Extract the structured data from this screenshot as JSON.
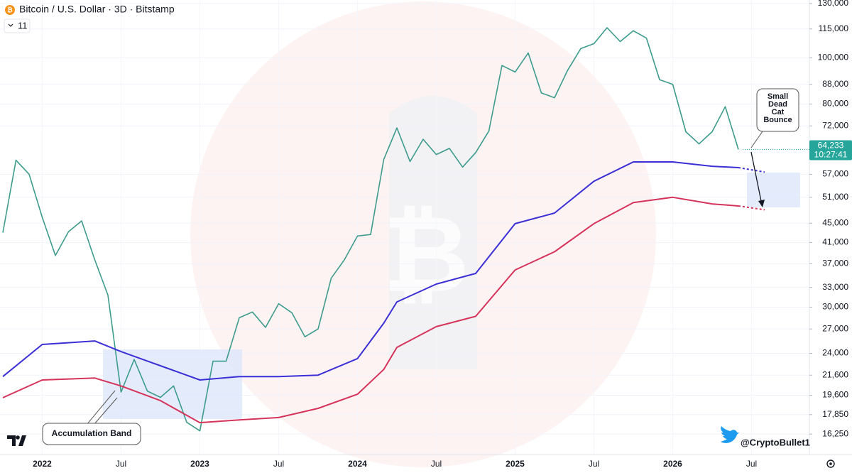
{
  "chart_data": {
    "type": "line",
    "title": "Bitcoin / U.S. Dollar · 3D · Bitstamp",
    "indicator_count": "11",
    "log_scale": true,
    "grid": true,
    "xlim": [
      "2021-10",
      "2026-11"
    ],
    "xticks": [
      {
        "value": "2022-01",
        "label": "2022"
      },
      {
        "value": "2022-07",
        "label": "Jul"
      },
      {
        "value": "2023-01",
        "label": "2023"
      },
      {
        "value": "2023-07",
        "label": "Jul"
      },
      {
        "value": "2024-01",
        "label": "2024"
      },
      {
        "value": "2024-07",
        "label": "Jul"
      },
      {
        "value": "2025-01",
        "label": "2025"
      },
      {
        "value": "2025-07",
        "label": "Jul"
      },
      {
        "value": "2026-01",
        "label": "2026"
      },
      {
        "value": "2026-07",
        "label": "Jul"
      }
    ],
    "ylim": [
      14720,
      132250
    ],
    "yticks": [
      {
        "value": 130000,
        "label": "130,000"
      },
      {
        "value": 115000,
        "label": "115,000"
      },
      {
        "value": 100000,
        "label": "100,000"
      },
      {
        "value": 88000,
        "label": "88,000"
      },
      {
        "value": 80000,
        "label": "80,000"
      },
      {
        "value": 72000,
        "label": "72,000"
      },
      {
        "value": 57000,
        "label": "57,000"
      },
      {
        "value": 51000,
        "label": "51,000"
      },
      {
        "value": 45000,
        "label": "45,000"
      },
      {
        "value": 41000,
        "label": "41,000"
      },
      {
        "value": 37000,
        "label": "37,000"
      },
      {
        "value": 33000,
        "label": "33,000"
      },
      {
        "value": 30000,
        "label": "30,000"
      },
      {
        "value": 27000,
        "label": "27,000"
      },
      {
        "value": 24000,
        "label": "24,000"
      },
      {
        "value": 21600,
        "label": "21,600"
      },
      {
        "value": 19600,
        "label": "19,600"
      },
      {
        "value": 17850,
        "label": "17,850"
      },
      {
        "value": 16250,
        "label": "16,250"
      }
    ],
    "last_price": {
      "value": 64233,
      "label": "64,233",
      "countdown": "10:27:41",
      "color": "#26a69a"
    },
    "series": [
      {
        "color": "#3d9b8c",
        "width": 1.6,
        "x": [
          "2021-10",
          "2021-11",
          "2021-12",
          "2022-01",
          "2022-02",
          "2022-03",
          "2022-04",
          "2022-05",
          "2022-06",
          "2022-07",
          "2022-08",
          "2022-09",
          "2022-10",
          "2022-11",
          "2022-12",
          "2023-01",
          "2023-02",
          "2023-03",
          "2023-04",
          "2023-05",
          "2023-06",
          "2023-07",
          "2023-08",
          "2023-09",
          "2023-10",
          "2023-11",
          "2023-12",
          "2024-01",
          "2024-02",
          "2024-03",
          "2024-04",
          "2024-05",
          "2024-06",
          "2024-07",
          "2024-08",
          "2024-09",
          "2024-10",
          "2024-11",
          "2024-12",
          "2025-01",
          "2025-02",
          "2025-03",
          "2025-04",
          "2025-05",
          "2025-06",
          "2025-07",
          "2025-08",
          "2025-09",
          "2025-10",
          "2025-11",
          "2025-12",
          "2026-01",
          "2026-02",
          "2026-03",
          "2026-04",
          "2026-05",
          "2026-06"
        ],
        "values": [
          43000,
          61000,
          57000,
          46300,
          38500,
          43200,
          45500,
          37700,
          31800,
          19900,
          23300,
          20000,
          19400,
          20500,
          17200,
          16500,
          23100,
          23100,
          28500,
          29300,
          27200,
          30500,
          29200,
          26000,
          27000,
          34500,
          37700,
          42300,
          42600,
          61200,
          71300,
          60600,
          67500,
          62700,
          64600,
          59000,
          63300,
          70200,
          96400,
          93400,
          102400,
          84400,
          82500,
          94200,
          104600,
          107100,
          115700,
          108200,
          114000,
          110000,
          90000,
          88000,
          70000,
          66000,
          70000,
          79000,
          64233
        ]
      },
      {
        "color": "#3b2fd6",
        "width": 2,
        "x": [
          "2021-10",
          "2022-01",
          "2022-05",
          "2022-07",
          "2022-10",
          "2023-01",
          "2023-04",
          "2023-07",
          "2023-10",
          "2024-01",
          "2024-03",
          "2024-04",
          "2024-07",
          "2024-10",
          "2025-01",
          "2025-04",
          "2025-07",
          "2025-10",
          "2026-01",
          "2026-04",
          "2026-06"
        ],
        "values": [
          21450,
          25050,
          25480,
          24200,
          22600,
          21100,
          21450,
          21450,
          21600,
          23400,
          27770,
          30770,
          33530,
          35300,
          44900,
          47250,
          55100,
          60500,
          60500,
          59250,
          58850
        ]
      },
      {
        "color": "#d6335a",
        "width": 2,
        "x": [
          "2021-10",
          "2022-01",
          "2022-05",
          "2022-07",
          "2022-10",
          "2023-01",
          "2023-04",
          "2023-07",
          "2023-10",
          "2024-01",
          "2024-03",
          "2024-04",
          "2024-07",
          "2024-10",
          "2025-01",
          "2025-04",
          "2025-07",
          "2025-10",
          "2026-01",
          "2026-04",
          "2026-06"
        ],
        "values": [
          19370,
          21100,
          21300,
          20500,
          19100,
          17170,
          17400,
          17600,
          18400,
          19700,
          22200,
          24700,
          27300,
          28700,
          35900,
          39200,
          44900,
          49700,
          51000,
          49400,
          48900
        ]
      },
      {
        "color": "#3b2fd6",
        "width": 2,
        "dashed": true,
        "x": [
          "2026-06",
          "2026-08"
        ],
        "values": [
          58850,
          57600
        ]
      },
      {
        "color": "#d6335a",
        "width": 2,
        "dashed": true,
        "x": [
          "2026-06",
          "2026-08"
        ],
        "values": [
          48900,
          48000
        ]
      }
    ],
    "annotations": {
      "bounce": "Small Dead Cat Bounce",
      "accumulation": "Accumulation Band"
    },
    "watermark": "@CryptoBullet1"
  }
}
